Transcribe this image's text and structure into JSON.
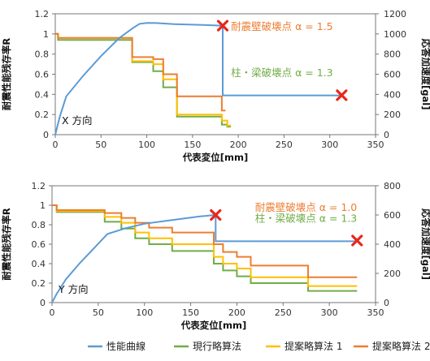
{
  "colors": {
    "performance_curve": "#5b9bd5",
    "current_method": "#70ad47",
    "proposed_1": "#ffc000",
    "proposed_2": "#ed7d31",
    "marker": "#e8271c",
    "annotation_wall": "#ed7d31",
    "annotation_column": "#70ad47"
  },
  "legend": {
    "items": [
      {
        "label": "性能曲線",
        "color": "#5b9bd5"
      },
      {
        "label": "現行略算法",
        "color": "#70ad47"
      },
      {
        "label": "提案略算法 1",
        "color": "#ffc000"
      },
      {
        "label": "提案略算法 2",
        "color": "#ed7d31"
      }
    ]
  },
  "chart_data": [
    {
      "type": "line",
      "direction_label": "X 方向",
      "xlabel": "代表変位[mm]",
      "ylabel": "耐震性能残存率R",
      "y2label": "応答加速度[gal]",
      "xlim": [
        0,
        350
      ],
      "ylim": [
        0,
        1.2
      ],
      "y2lim": [
        0,
        1200
      ],
      "xticks": [
        "0",
        "50",
        "100",
        "150",
        "200",
        "250",
        "300",
        "350"
      ],
      "yticks": [
        "0",
        "0.2",
        "0.4",
        "0.6",
        "0.8",
        "1",
        "1.2"
      ],
      "y2ticks": [
        "0",
        "200",
        "400",
        "600",
        "800",
        "1000",
        "1200"
      ],
      "annotations": [
        {
          "text": "耐震壁破壊点 α = 1.5",
          "color": "#ed7d31",
          "x": 192,
          "y2": 1080,
          "anchor": "start"
        },
        {
          "text": "柱・梁破壊点 α = 1.3",
          "color": "#70ad47",
          "x": 192,
          "y2": 620,
          "anchor": "start"
        }
      ],
      "markers": [
        {
          "x": 183,
          "y2": 1082
        },
        {
          "x": 313,
          "y2": 392
        }
      ],
      "performance_curve": {
        "axis": "y2",
        "x": [
          0,
          5,
          12,
          30,
          50,
          70,
          85,
          92,
          100,
          110,
          130,
          150,
          165,
          183,
          183,
          313
        ],
        "y": [
          0,
          180,
          380,
          580,
          780,
          960,
          1060,
          1100,
          1110,
          1108,
          1098,
          1092,
          1088,
          1082,
          390,
          390
        ]
      },
      "series": [
        {
          "name": "現行略算法",
          "color": "#70ad47",
          "x": [
            0,
            3,
            3,
            84,
            84,
            107,
            107,
            118,
            118,
            133,
            133,
            182,
            182,
            188,
            188,
            192
          ],
          "y": [
            1.0,
            1.0,
            0.94,
            0.94,
            0.72,
            0.72,
            0.63,
            0.63,
            0.47,
            0.47,
            0.18,
            0.18,
            0.1,
            0.1,
            0.08,
            0.08
          ]
        },
        {
          "name": "提案略算法 1",
          "color": "#ffc000",
          "x": [
            0,
            3,
            3,
            84,
            84,
            107,
            107,
            118,
            118,
            133,
            133,
            182,
            182,
            188,
            188,
            192
          ],
          "y": [
            1.0,
            1.0,
            0.96,
            0.96,
            0.73,
            0.73,
            0.7,
            0.7,
            0.55,
            0.55,
            0.2,
            0.2,
            0.14,
            0.14,
            0.09,
            0.09
          ]
        },
        {
          "name": "提案略算法 2",
          "color": "#ed7d31",
          "x": [
            0,
            3,
            3,
            84,
            84,
            107,
            107,
            118,
            118,
            133,
            133,
            182,
            182,
            186
          ],
          "y": [
            1.0,
            1.0,
            0.96,
            0.96,
            0.77,
            0.77,
            0.75,
            0.75,
            0.6,
            0.6,
            0.38,
            0.38,
            0.24,
            0.24
          ]
        }
      ]
    },
    {
      "type": "line",
      "direction_label": "Y 方向",
      "xlabel": "代表変位[mm]",
      "ylabel": "耐震性能残存率R",
      "y2label": "応答加速度[gal]",
      "xlim": [
        0,
        350
      ],
      "ylim": [
        0,
        1.2
      ],
      "y2lim": [
        0,
        800
      ],
      "xticks": [
        "0",
        "50",
        "100",
        "150",
        "200",
        "250",
        "300",
        "350"
      ],
      "yticks": [
        "0",
        "0.2",
        "0.4",
        "0.6",
        "0.8",
        "1",
        "1.2"
      ],
      "y2ticks": [
        "0",
        "200",
        "400",
        "600",
        "800"
      ],
      "annotations": [
        {
          "text": "耐震壁破壊点 α = 1.0",
          "color": "#ed7d31",
          "x": 330,
          "y2": 655,
          "anchor": "end"
        },
        {
          "text": "柱・梁破壊点 α = 1.3",
          "color": "#70ad47",
          "x": 330,
          "y2": 580,
          "anchor": "end"
        }
      ],
      "markers": [
        {
          "x": 177,
          "y2": 600
        },
        {
          "x": 330,
          "y2": 425
        }
      ],
      "performance_curve": {
        "axis": "y2",
        "x": [
          0,
          5,
          15,
          30,
          45,
          60,
          80,
          100,
          130,
          160,
          177,
          177,
          330
        ],
        "y": [
          0,
          60,
          160,
          270,
          370,
          470,
          510,
          540,
          565,
          590,
          600,
          420,
          420
        ]
      },
      "series": [
        {
          "name": "現行略算法",
          "color": "#70ad47",
          "x": [
            0,
            5,
            5,
            57,
            57,
            75,
            75,
            90,
            90,
            105,
            105,
            130,
            130,
            175,
            175,
            185,
            185,
            200,
            200,
            215,
            215,
            277,
            277,
            330
          ],
          "y": [
            1.0,
            1.0,
            0.93,
            0.93,
            0.83,
            0.83,
            0.76,
            0.76,
            0.66,
            0.66,
            0.6,
            0.6,
            0.53,
            0.53,
            0.4,
            0.4,
            0.33,
            0.33,
            0.27,
            0.27,
            0.2,
            0.2,
            0.12,
            0.12
          ]
        },
        {
          "name": "提案略算法 1",
          "color": "#ffc000",
          "x": [
            0,
            5,
            5,
            57,
            57,
            75,
            75,
            90,
            90,
            105,
            105,
            130,
            130,
            175,
            175,
            185,
            185,
            200,
            200,
            215,
            215,
            277,
            277,
            330
          ],
          "y": [
            1.0,
            1.0,
            0.94,
            0.94,
            0.88,
            0.88,
            0.82,
            0.82,
            0.72,
            0.72,
            0.66,
            0.66,
            0.6,
            0.6,
            0.47,
            0.47,
            0.4,
            0.4,
            0.35,
            0.35,
            0.26,
            0.26,
            0.17,
            0.17
          ]
        },
        {
          "name": "提案略算法 2",
          "color": "#ed7d31",
          "x": [
            0,
            5,
            5,
            57,
            57,
            75,
            75,
            90,
            90,
            105,
            105,
            130,
            130,
            175,
            175,
            185,
            185,
            200,
            200,
            215,
            215,
            277,
            277,
            330
          ],
          "y": [
            1.0,
            1.0,
            0.95,
            0.95,
            0.92,
            0.92,
            0.87,
            0.87,
            0.82,
            0.82,
            0.77,
            0.77,
            0.72,
            0.72,
            0.6,
            0.6,
            0.52,
            0.52,
            0.47,
            0.47,
            0.38,
            0.38,
            0.26,
            0.26
          ]
        }
      ]
    }
  ]
}
